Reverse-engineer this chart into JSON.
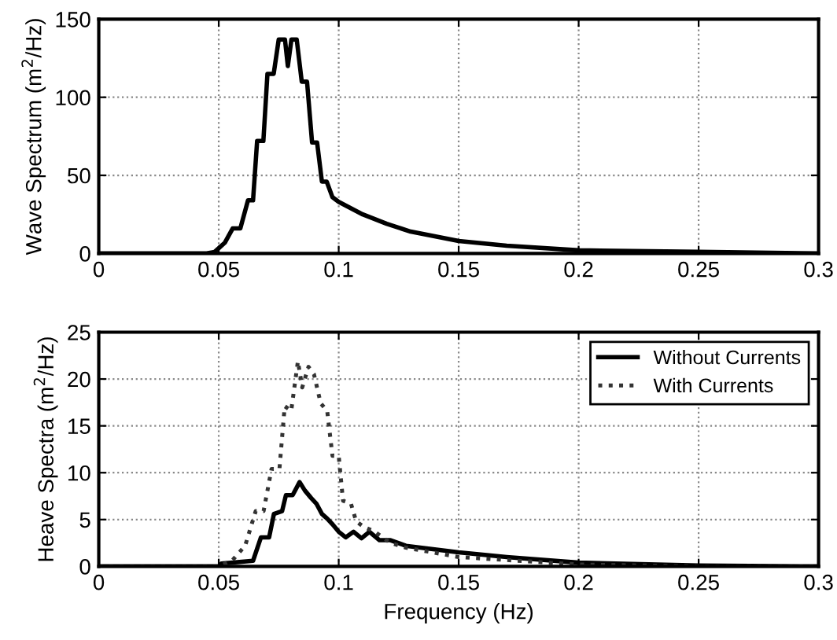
{
  "chart_data": [
    {
      "type": "line",
      "ylabel": "Wave Spectrum (m$^{2}$/Hz)",
      "xlim": [
        0,
        0.3
      ],
      "xticks": [
        0,
        0.05,
        0.1,
        0.15,
        0.2,
        0.25,
        0.3
      ],
      "ylim": [
        0,
        150
      ],
      "yticks": [
        0,
        50,
        100,
        150
      ],
      "grid": true,
      "legend": false,
      "series": [
        {
          "color": "#000000",
          "line_style": "solid",
          "x": [
            0,
            0.045,
            0.0483,
            0.0526,
            0.0558,
            0.059,
            0.0622,
            0.0643,
            0.066,
            0.0686,
            0.0703,
            0.0729,
            0.075,
            0.0776,
            0.0788,
            0.0803,
            0.0825,
            0.0846,
            0.0868,
            0.0889,
            0.091,
            0.093,
            0.095,
            0.0974,
            0.1,
            0.105,
            0.11,
            0.115,
            0.12,
            0.13,
            0.14,
            0.15,
            0.17,
            0.2,
            0.25,
            0.3
          ],
          "values": [
            0,
            0,
            1,
            7,
            16,
            16,
            34,
            34,
            72,
            72,
            115,
            115,
            137,
            137,
            120,
            137,
            137,
            110,
            110,
            71,
            71,
            46,
            46,
            36,
            33,
            29,
            25,
            22,
            19,
            14,
            11,
            8,
            5,
            2,
            1,
            0
          ]
        }
      ]
    },
    {
      "type": "line",
      "xlabel": "Frequency (Hz)",
      "ylabel": "Heave Spectra (m$^{2}$/Hz)",
      "xlim": [
        0,
        0.3
      ],
      "xticks": [
        0,
        0.05,
        0.1,
        0.15,
        0.2,
        0.25,
        0.3
      ],
      "ylim": [
        0,
        25
      ],
      "yticks": [
        0,
        5,
        10,
        15,
        20,
        25
      ],
      "grid": true,
      "legend": "top right",
      "series": [
        {
          "name": "Without Currents",
          "color": "#000000",
          "line_style": "solid",
          "x": [
            0,
            0.05,
            0.0511,
            0.0643,
            0.0676,
            0.071,
            0.073,
            0.0764,
            0.078,
            0.0808,
            0.0837,
            0.0859,
            0.0885,
            0.0907,
            0.093,
            0.0952,
            0.0974,
            0.1,
            0.1029,
            0.1062,
            0.1095,
            0.1128,
            0.117,
            0.1216,
            0.128,
            0.15,
            0.17,
            0.2,
            0.25,
            0.3
          ],
          "values": [
            0,
            0,
            0.3,
            0.6,
            3.1,
            3.1,
            5.6,
            5.9,
            7.6,
            7.6,
            9.0,
            8.1,
            7.3,
            6.7,
            5.6,
            5.1,
            4.5,
            3.7,
            3.1,
            3.7,
            3.0,
            3.7,
            2.8,
            2.8,
            2.2,
            1.5,
            1.0,
            0.4,
            0.1,
            0
          ]
        },
        {
          "name": "With Currents",
          "color": "#333333",
          "line_style": "dotted",
          "x": [
            0,
            0.05,
            0.0555,
            0.061,
            0.0654,
            0.0687,
            0.072,
            0.0753,
            0.0775,
            0.0802,
            0.083,
            0.0848,
            0.0874,
            0.0897,
            0.0925,
            0.0952,
            0.0974,
            0.1,
            0.1018,
            0.1051,
            0.1073,
            0.1106,
            0.115,
            0.1216,
            0.128,
            0.15,
            0.2,
            0.25,
            0.3
          ],
          "values": [
            0,
            0,
            0.6,
            2.2,
            5.9,
            5.9,
            10.4,
            10.4,
            17.1,
            16.6,
            21.9,
            19.1,
            21.3,
            20.5,
            17.4,
            16.6,
            11.8,
            11.8,
            7.0,
            6.7,
            4.8,
            4.2,
            3.7,
            2.5,
            2.0,
            1.0,
            0.2,
            0,
            0
          ]
        }
      ]
    }
  ]
}
